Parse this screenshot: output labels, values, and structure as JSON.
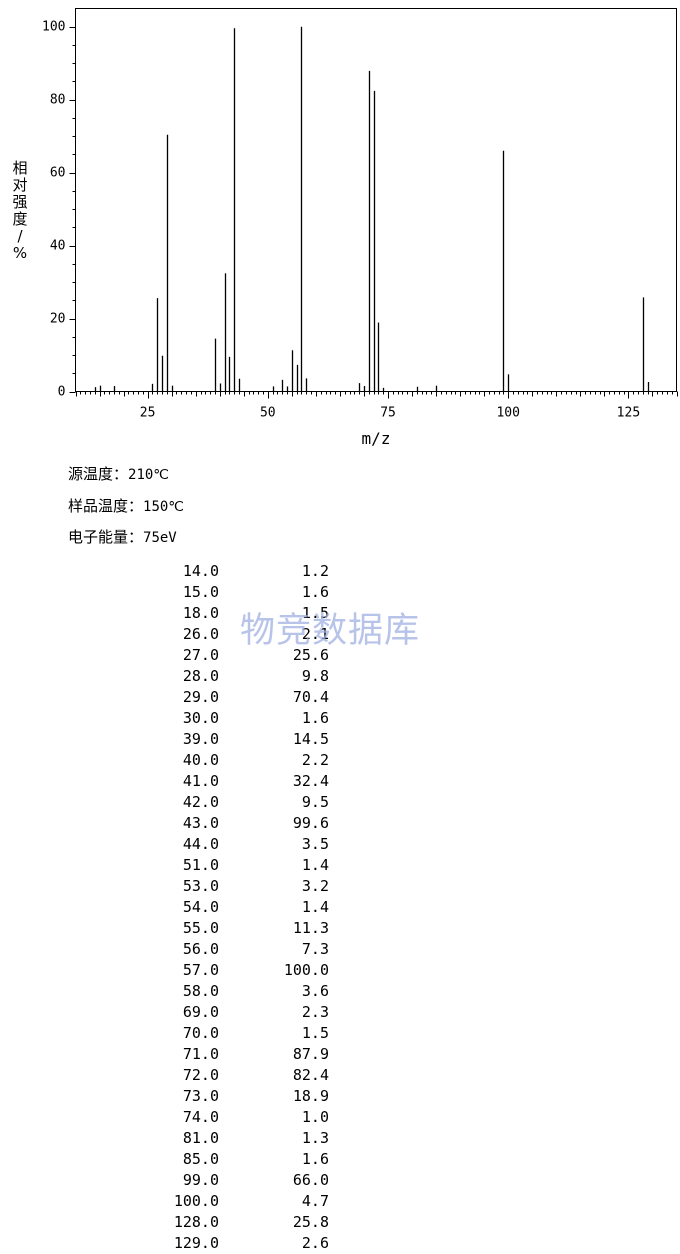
{
  "chart_data": {
    "type": "bar",
    "ylabel": "相对强度/%",
    "xlabel": "m/z",
    "xlim": [
      10,
      135
    ],
    "ylim": [
      0,
      105
    ],
    "x_ticks": [
      25,
      50,
      75,
      100,
      125
    ],
    "y_ticks": [
      0,
      20,
      40,
      60,
      80,
      100
    ],
    "grid": false,
    "bar_color": "#000000",
    "peaks": [
      {
        "mz": 14.0,
        "intensity": 1.2
      },
      {
        "mz": 15.0,
        "intensity": 1.6
      },
      {
        "mz": 18.0,
        "intensity": 1.5
      },
      {
        "mz": 26.0,
        "intensity": 2.1
      },
      {
        "mz": 27.0,
        "intensity": 25.6
      },
      {
        "mz": 28.0,
        "intensity": 9.8
      },
      {
        "mz": 29.0,
        "intensity": 70.4
      },
      {
        "mz": 30.0,
        "intensity": 1.6
      },
      {
        "mz": 39.0,
        "intensity": 14.5
      },
      {
        "mz": 40.0,
        "intensity": 2.2
      },
      {
        "mz": 41.0,
        "intensity": 32.4
      },
      {
        "mz": 42.0,
        "intensity": 9.5
      },
      {
        "mz": 43.0,
        "intensity": 99.6
      },
      {
        "mz": 44.0,
        "intensity": 3.5
      },
      {
        "mz": 51.0,
        "intensity": 1.4
      },
      {
        "mz": 53.0,
        "intensity": 3.2
      },
      {
        "mz": 54.0,
        "intensity": 1.4
      },
      {
        "mz": 55.0,
        "intensity": 11.3
      },
      {
        "mz": 56.0,
        "intensity": 7.3
      },
      {
        "mz": 57.0,
        "intensity": 100.0
      },
      {
        "mz": 58.0,
        "intensity": 3.6
      },
      {
        "mz": 69.0,
        "intensity": 2.3
      },
      {
        "mz": 70.0,
        "intensity": 1.5
      },
      {
        "mz": 71.0,
        "intensity": 87.9
      },
      {
        "mz": 72.0,
        "intensity": 82.4
      },
      {
        "mz": 73.0,
        "intensity": 18.9
      },
      {
        "mz": 74.0,
        "intensity": 1.0
      },
      {
        "mz": 81.0,
        "intensity": 1.3
      },
      {
        "mz": 85.0,
        "intensity": 1.6
      },
      {
        "mz": 99.0,
        "intensity": 66.0
      },
      {
        "mz": 100.0,
        "intensity": 4.7
      },
      {
        "mz": 128.0,
        "intensity": 25.8
      },
      {
        "mz": 129.0,
        "intensity": 2.6
      }
    ]
  },
  "conditions": {
    "source_temp_label": "源温度：",
    "source_temp_value": "210℃",
    "sample_temp_label": "样品温度：",
    "sample_temp_value": "150℃",
    "energy_label": "电子能量：",
    "energy_value": "75eV"
  },
  "peak_table": [
    {
      "mz": "14.0",
      "intensity": "1.2"
    },
    {
      "mz": "15.0",
      "intensity": "1.6"
    },
    {
      "mz": "18.0",
      "intensity": "1.5"
    },
    {
      "mz": "26.0",
      "intensity": "2.1"
    },
    {
      "mz": "27.0",
      "intensity": "25.6"
    },
    {
      "mz": "28.0",
      "intensity": "9.8"
    },
    {
      "mz": "29.0",
      "intensity": "70.4"
    },
    {
      "mz": "30.0",
      "intensity": "1.6"
    },
    {
      "mz": "39.0",
      "intensity": "14.5"
    },
    {
      "mz": "40.0",
      "intensity": "2.2"
    },
    {
      "mz": "41.0",
      "intensity": "32.4"
    },
    {
      "mz": "42.0",
      "intensity": "9.5"
    },
    {
      "mz": "43.0",
      "intensity": "99.6"
    },
    {
      "mz": "44.0",
      "intensity": "3.5"
    },
    {
      "mz": "51.0",
      "intensity": "1.4"
    },
    {
      "mz": "53.0",
      "intensity": "3.2"
    },
    {
      "mz": "54.0",
      "intensity": "1.4"
    },
    {
      "mz": "55.0",
      "intensity": "11.3"
    },
    {
      "mz": "56.0",
      "intensity": "7.3"
    },
    {
      "mz": "57.0",
      "intensity": "100.0"
    },
    {
      "mz": "58.0",
      "intensity": "3.6"
    },
    {
      "mz": "69.0",
      "intensity": "2.3"
    },
    {
      "mz": "70.0",
      "intensity": "1.5"
    },
    {
      "mz": "71.0",
      "intensity": "87.9"
    },
    {
      "mz": "72.0",
      "intensity": "82.4"
    },
    {
      "mz": "73.0",
      "intensity": "18.9"
    },
    {
      "mz": "74.0",
      "intensity": "1.0"
    },
    {
      "mz": "81.0",
      "intensity": "1.3"
    },
    {
      "mz": "85.0",
      "intensity": "1.6"
    },
    {
      "mz": "99.0",
      "intensity": "66.0"
    },
    {
      "mz": "100.0",
      "intensity": "4.7"
    },
    {
      "mz": "128.0",
      "intensity": "25.8"
    },
    {
      "mz": "129.0",
      "intensity": "2.6"
    }
  ],
  "watermark": "物竞数据库"
}
